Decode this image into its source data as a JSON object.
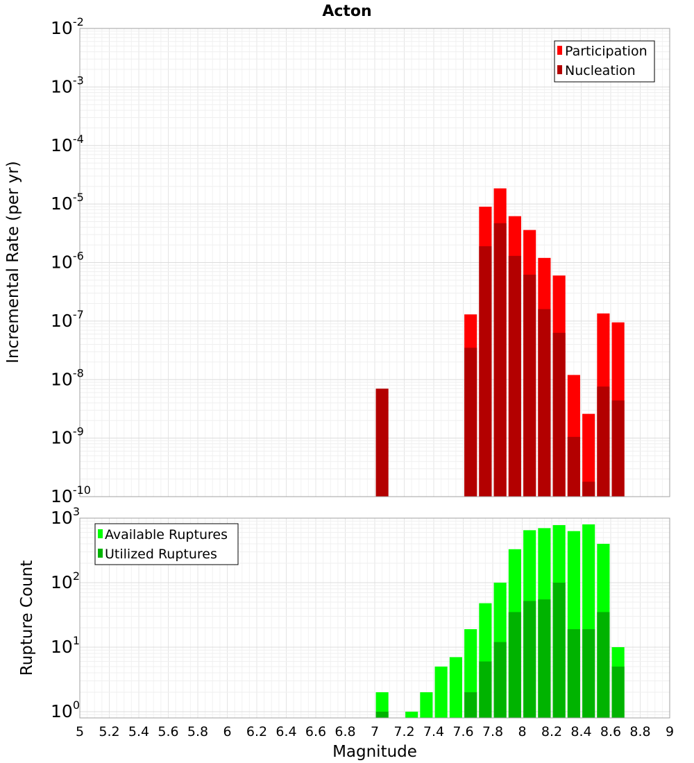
{
  "chart_data": {
    "title": "Acton",
    "xlabel": "Magnitude",
    "xlim": [
      5,
      9
    ],
    "x_ticks": [
      "5",
      "5.2",
      "5.4",
      "5.6",
      "5.8",
      "6",
      "6.2",
      "6.4",
      "6.6",
      "6.8",
      "7",
      "7.2",
      "7.4",
      "7.6",
      "7.8",
      "8",
      "8.2",
      "8.4",
      "8.6",
      "8.8",
      "9"
    ],
    "panels": [
      {
        "type": "bar",
        "ylabel": "Incremental Rate (per yr)",
        "yscale": "log",
        "ylim": [
          1e-10,
          0.01
        ],
        "y_tick_exponents": [
          "-10",
          "-9",
          "-8",
          "-7",
          "-6",
          "-5",
          "-4",
          "-3",
          "-2"
        ],
        "grid": true,
        "legend_position": "top-right",
        "overlay": true,
        "x": [
          7.05,
          7.65,
          7.75,
          7.85,
          7.95,
          8.05,
          8.15,
          8.25,
          8.35,
          8.45,
          8.55,
          8.65
        ],
        "series": [
          {
            "name": "Participation",
            "color": "#ff0000",
            "values": [
              null,
              1.3e-07,
              9e-06,
              1.85e-05,
              6.2e-06,
              3.6e-06,
              1.2e-06,
              6e-07,
              1.2e-08,
              2.6e-09,
              1.35e-07,
              9.5e-08
            ]
          },
          {
            "name": "Nucleation",
            "color": "#b30000",
            "values": [
              7e-09,
              3.5e-08,
              1.9e-06,
              4.7e-06,
              1.3e-06,
              6.2e-07,
              1.6e-07,
              6.3e-08,
              1.05e-09,
              1.8e-10,
              7.6e-09,
              4.4e-09
            ]
          }
        ]
      },
      {
        "type": "bar",
        "ylabel": "Rupture Count",
        "yscale": "log",
        "ylim": [
          0.8,
          1000
        ],
        "y_tick_exponents": [
          "0",
          "1",
          "2",
          "3"
        ],
        "grid": true,
        "legend_position": "top-left",
        "overlay": true,
        "x": [
          7.05,
          7.25,
          7.35,
          7.45,
          7.55,
          7.65,
          7.75,
          7.85,
          7.95,
          8.05,
          8.15,
          8.25,
          8.35,
          8.45,
          8.55,
          8.65
        ],
        "series": [
          {
            "name": "Available Ruptures",
            "color": "#00ff00",
            "values": [
              2,
              1,
              2,
              5,
              7,
              19,
              48,
              100,
              330,
              650,
              700,
              780,
              630,
              800,
              400,
              10
            ]
          },
          {
            "name": "Utilized Ruptures",
            "color": "#00b300",
            "values": [
              1,
              null,
              null,
              null,
              null,
              2,
              6,
              12,
              35,
              52,
              55,
              100,
              19,
              19,
              35,
              5
            ]
          }
        ]
      }
    ]
  }
}
